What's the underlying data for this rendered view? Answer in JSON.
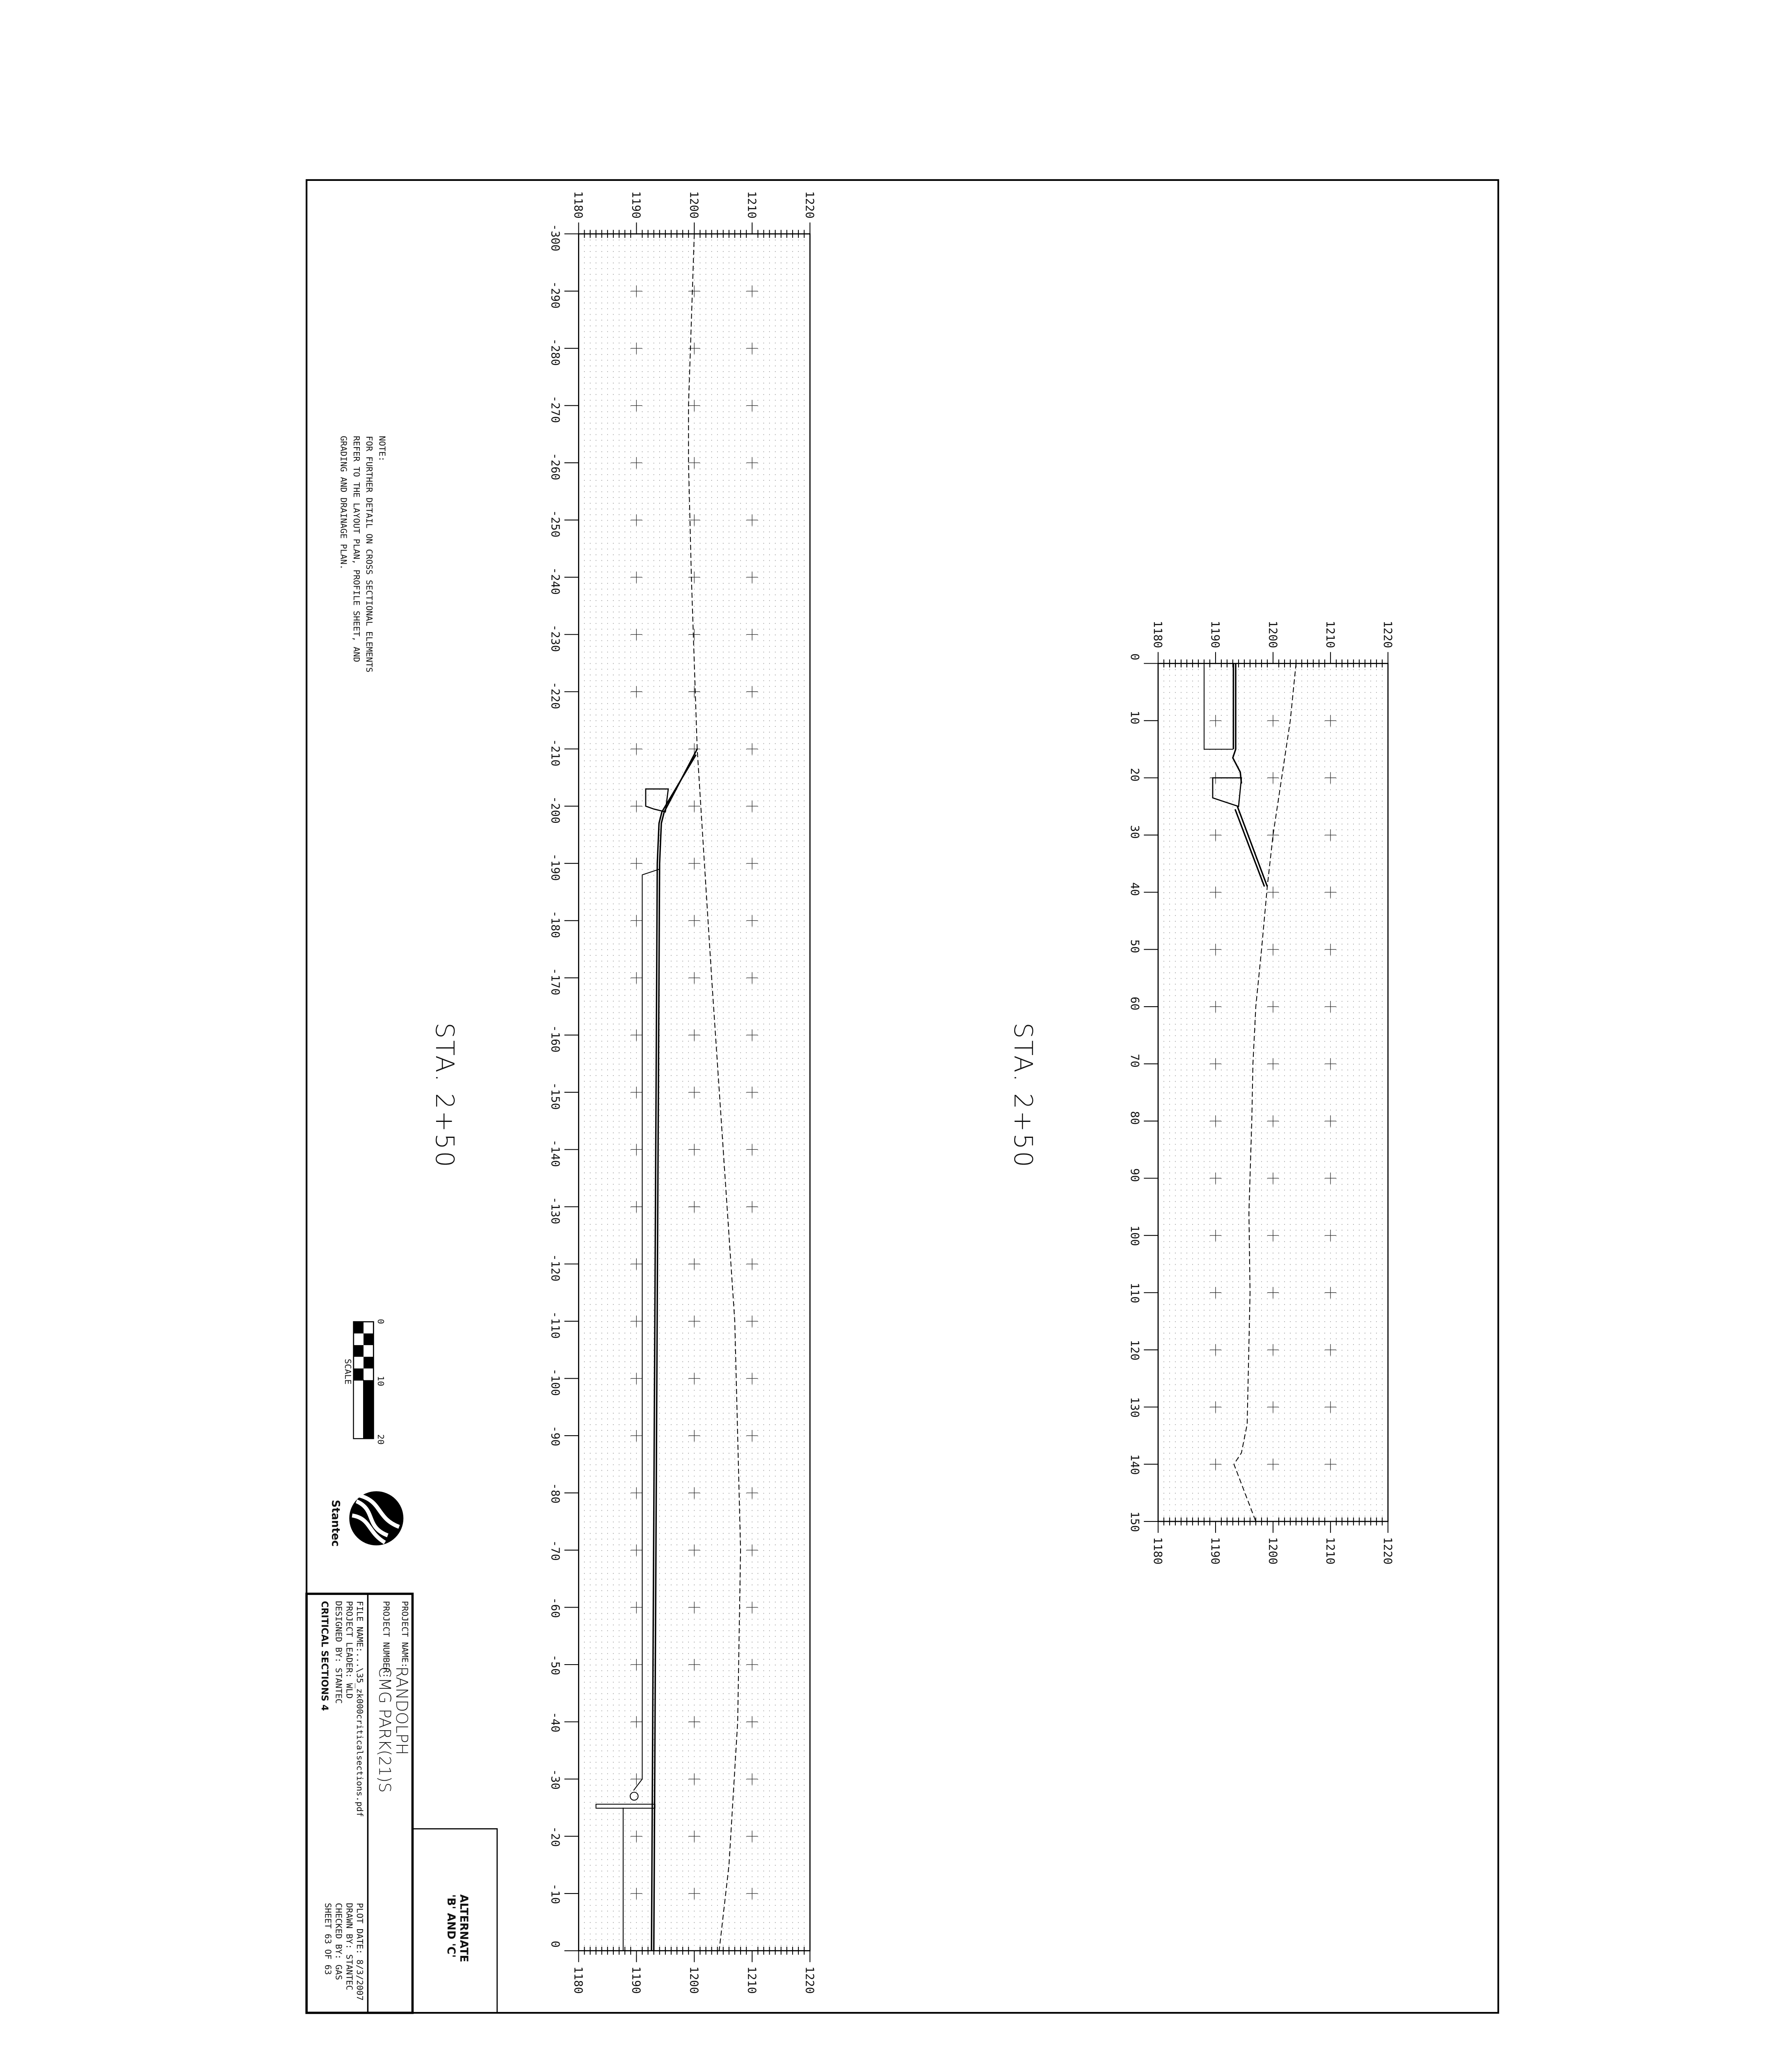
{
  "note": {
    "heading": "NOTE:",
    "lines": [
      "FOR FURTHER DETAIL ON CROSS SECTIONAL ELEMENTS",
      "REFER TO THE LAYOUT PLAN, PROFILE SHEET, AND",
      "GRADING AND DRAINAGE PLAN."
    ]
  },
  "scale": {
    "label": "SCALE",
    "ticks": [
      "0",
      "10",
      "20"
    ]
  },
  "logo": {
    "text": "Stantec"
  },
  "title_block": {
    "project_name_label": "PROJECT NAME:",
    "project_name": "RANDOLPH",
    "project_number_label": "PROJECT NUMBER:",
    "project_number": "CMG PARK(21)S",
    "file_name": "FILE NAME:...\\35_zk000criticalsections.pdf",
    "plot_date": "PLOT DATE: 8/3/2007",
    "project_leader": "PROJECT LEADER: WLD",
    "drawn_by": "DRAWN BY: STANTEC",
    "designed_by": "DESIGNED BY: STANTEC",
    "checked_by": "CHECKED BY: GAS",
    "sheet_title": "CRITICAL SECTIONS 4",
    "sheet": "SHEET 63 OF 63",
    "alternate_line1": "ALTERNATE",
    "alternate_line2": "'B' AND 'C'"
  },
  "chart_data": [
    {
      "type": "line",
      "title": "STA. 2+50",
      "elevation_ticks": [
        "1180",
        "1190",
        "1200",
        "1210",
        "1220"
      ],
      "elevation_range": [
        1180,
        1220
      ],
      "station_range": [
        -300,
        0
      ],
      "station_ticks": [
        "-300",
        "-290",
        "-280",
        "-270",
        "-260",
        "-250",
        "-240",
        "-230",
        "-220",
        "-210",
        "-200",
        "-190",
        "-180",
        "-170",
        "-160",
        "-150",
        "-140",
        "-130",
        "-120",
        "-110",
        "-100",
        "-90",
        "-80",
        "-70",
        "-60",
        "-50",
        "-40",
        "-30",
        "-20",
        "-10",
        "0"
      ],
      "grid": true,
      "series": [
        {
          "style": "dashed",
          "points": [
            [
              -300,
              1200
            ],
            [
              -270,
              1199
            ],
            [
              -260,
              1199
            ],
            [
              -240,
              1199.5
            ],
            [
              -210,
              1200.5
            ],
            [
              -170,
              1203
            ],
            [
              -140,
              1205
            ],
            [
              -110,
              1207
            ],
            [
              -70,
              1208
            ],
            [
              -40,
              1207.5
            ],
            [
              -15,
              1206
            ],
            [
              0,
              1204.3
            ]
          ]
        },
        {
          "style": "solid",
          "points": [
            [
              -210,
              1200.5
            ],
            [
              -199,
              1194.8
            ],
            [
              -197,
              1194.3
            ],
            [
              -190,
              1194
            ],
            [
              0,
              1193
            ]
          ]
        },
        {
          "style": "solid",
          "points": [
            [
              -209,
              1200.3
            ],
            [
              -199,
              1194.4
            ],
            [
              -197,
              1193.9
            ],
            [
              -190,
              1193.6
            ],
            [
              0,
              1192.6
            ]
          ]
        },
        {
          "style": "thin",
          "points": [
            [
              -189,
              1194
            ],
            [
              -188,
              1191
            ],
            [
              -30,
              1191
            ],
            [
              -28,
              1189.5
            ]
          ]
        },
        {
          "style": "thin",
          "points": [
            [
              -25,
              1187.7
            ],
            [
              0,
              1187.7
            ]
          ]
        }
      ]
    },
    {
      "type": "line",
      "title": "STA. 2+50",
      "elevation_ticks": [
        "1180",
        "1190",
        "1200",
        "1210",
        "1220"
      ],
      "elevation_range": [
        1180,
        1220
      ],
      "station_range": [
        0,
        150
      ],
      "station_ticks": [
        "0",
        "10",
        "20",
        "30",
        "40",
        "50",
        "60",
        "70",
        "80",
        "90",
        "100",
        "110",
        "120",
        "130",
        "140",
        "150"
      ],
      "grid": true,
      "series": [
        {
          "style": "dashed",
          "points": [
            [
              0,
              1204
            ],
            [
              10,
              1203
            ],
            [
              20,
              1201.5
            ],
            [
              30,
              1200
            ],
            [
              39,
              1199
            ],
            [
              50,
              1198
            ],
            [
              60,
              1197
            ],
            [
              70,
              1196.5
            ],
            [
              80,
              1196.3
            ],
            [
              96,
              1195.8
            ],
            [
              110,
              1196
            ],
            [
              133,
              1195.5
            ],
            [
              138,
              1194.5
            ],
            [
              140,
              1193.2
            ],
            [
              150,
              1197
            ]
          ]
        },
        {
          "style": "solid",
          "points": [
            [
              0,
              1193.5
            ],
            [
              15,
              1193.5
            ],
            [
              16.5,
              1193
            ],
            [
              19,
              1194.3
            ],
            [
              21,
              1194.5
            ]
          ]
        },
        {
          "style": "solid",
          "points": [
            [
              0,
              1193.1
            ],
            [
              15,
              1193.1
            ]
          ]
        },
        {
          "style": "solid",
          "points": [
            [
              25,
              1193.8
            ],
            [
              39,
              1199
            ]
          ]
        },
        {
          "style": "solid",
          "points": [
            [
              25.5,
              1193.4
            ],
            [
              39,
              1198.5
            ]
          ]
        },
        {
          "style": "thin",
          "points": [
            [
              0,
              1188
            ],
            [
              15,
              1188
            ],
            [
              15,
              1193
            ]
          ]
        }
      ]
    }
  ]
}
